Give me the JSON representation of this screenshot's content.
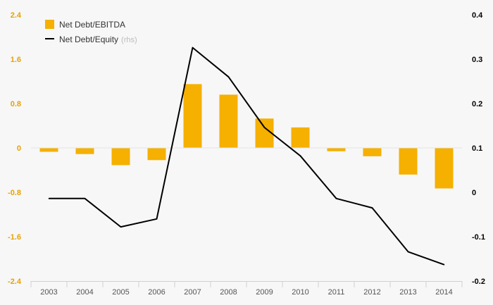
{
  "chart_data": {
    "type": "bar+line",
    "categories": [
      "2003",
      "2004",
      "2005",
      "2006",
      "2007",
      "2008",
      "2009",
      "2010",
      "2011",
      "2012",
      "2013",
      "2014"
    ],
    "series": [
      {
        "name": "Net Debt/EBITDA",
        "type": "bar",
        "axis": "left",
        "color": "#f5b000",
        "values": [
          -0.07,
          -0.11,
          -0.31,
          -0.22,
          1.15,
          0.96,
          0.53,
          0.37,
          -0.06,
          -0.15,
          -0.48,
          -0.73
        ]
      },
      {
        "name": "Net Debt/Equity",
        "name_suffix": "(rhs)",
        "type": "line",
        "axis": "right",
        "color": "#000000",
        "values": [
          -0.014,
          -0.014,
          -0.078,
          -0.06,
          0.326,
          0.26,
          0.146,
          0.082,
          -0.014,
          -0.035,
          -0.134,
          -0.163
        ]
      }
    ],
    "left_axis": {
      "min": -2.4,
      "max": 2.4,
      "ticks": [
        2.4,
        1.6,
        0.8,
        0,
        -0.8,
        -1.6,
        -2.4
      ],
      "tick_labels": [
        "2.4",
        "1.6",
        "0.8",
        "0",
        "-0.8",
        "-1.6",
        "-2.4"
      ],
      "color": "#e8a200"
    },
    "right_axis": {
      "min": -0.2,
      "max": 0.4,
      "ticks": [
        0.4,
        0.3,
        0.2,
        0.1,
        0,
        -0.1,
        -0.2
      ],
      "tick_labels": [
        "0.4",
        "0.3",
        "0.2",
        "0.1",
        "0",
        "-0.1",
        "-0.2"
      ],
      "color": "#000000"
    },
    "legend": {
      "placement": "top-left",
      "bar_label": "Net Debt/EBITDA",
      "line_label": "Net Debt/Equity",
      "line_suffix": "(rhs)"
    },
    "grid": false,
    "title": "",
    "xlabel": "",
    "ylabel": ""
  }
}
